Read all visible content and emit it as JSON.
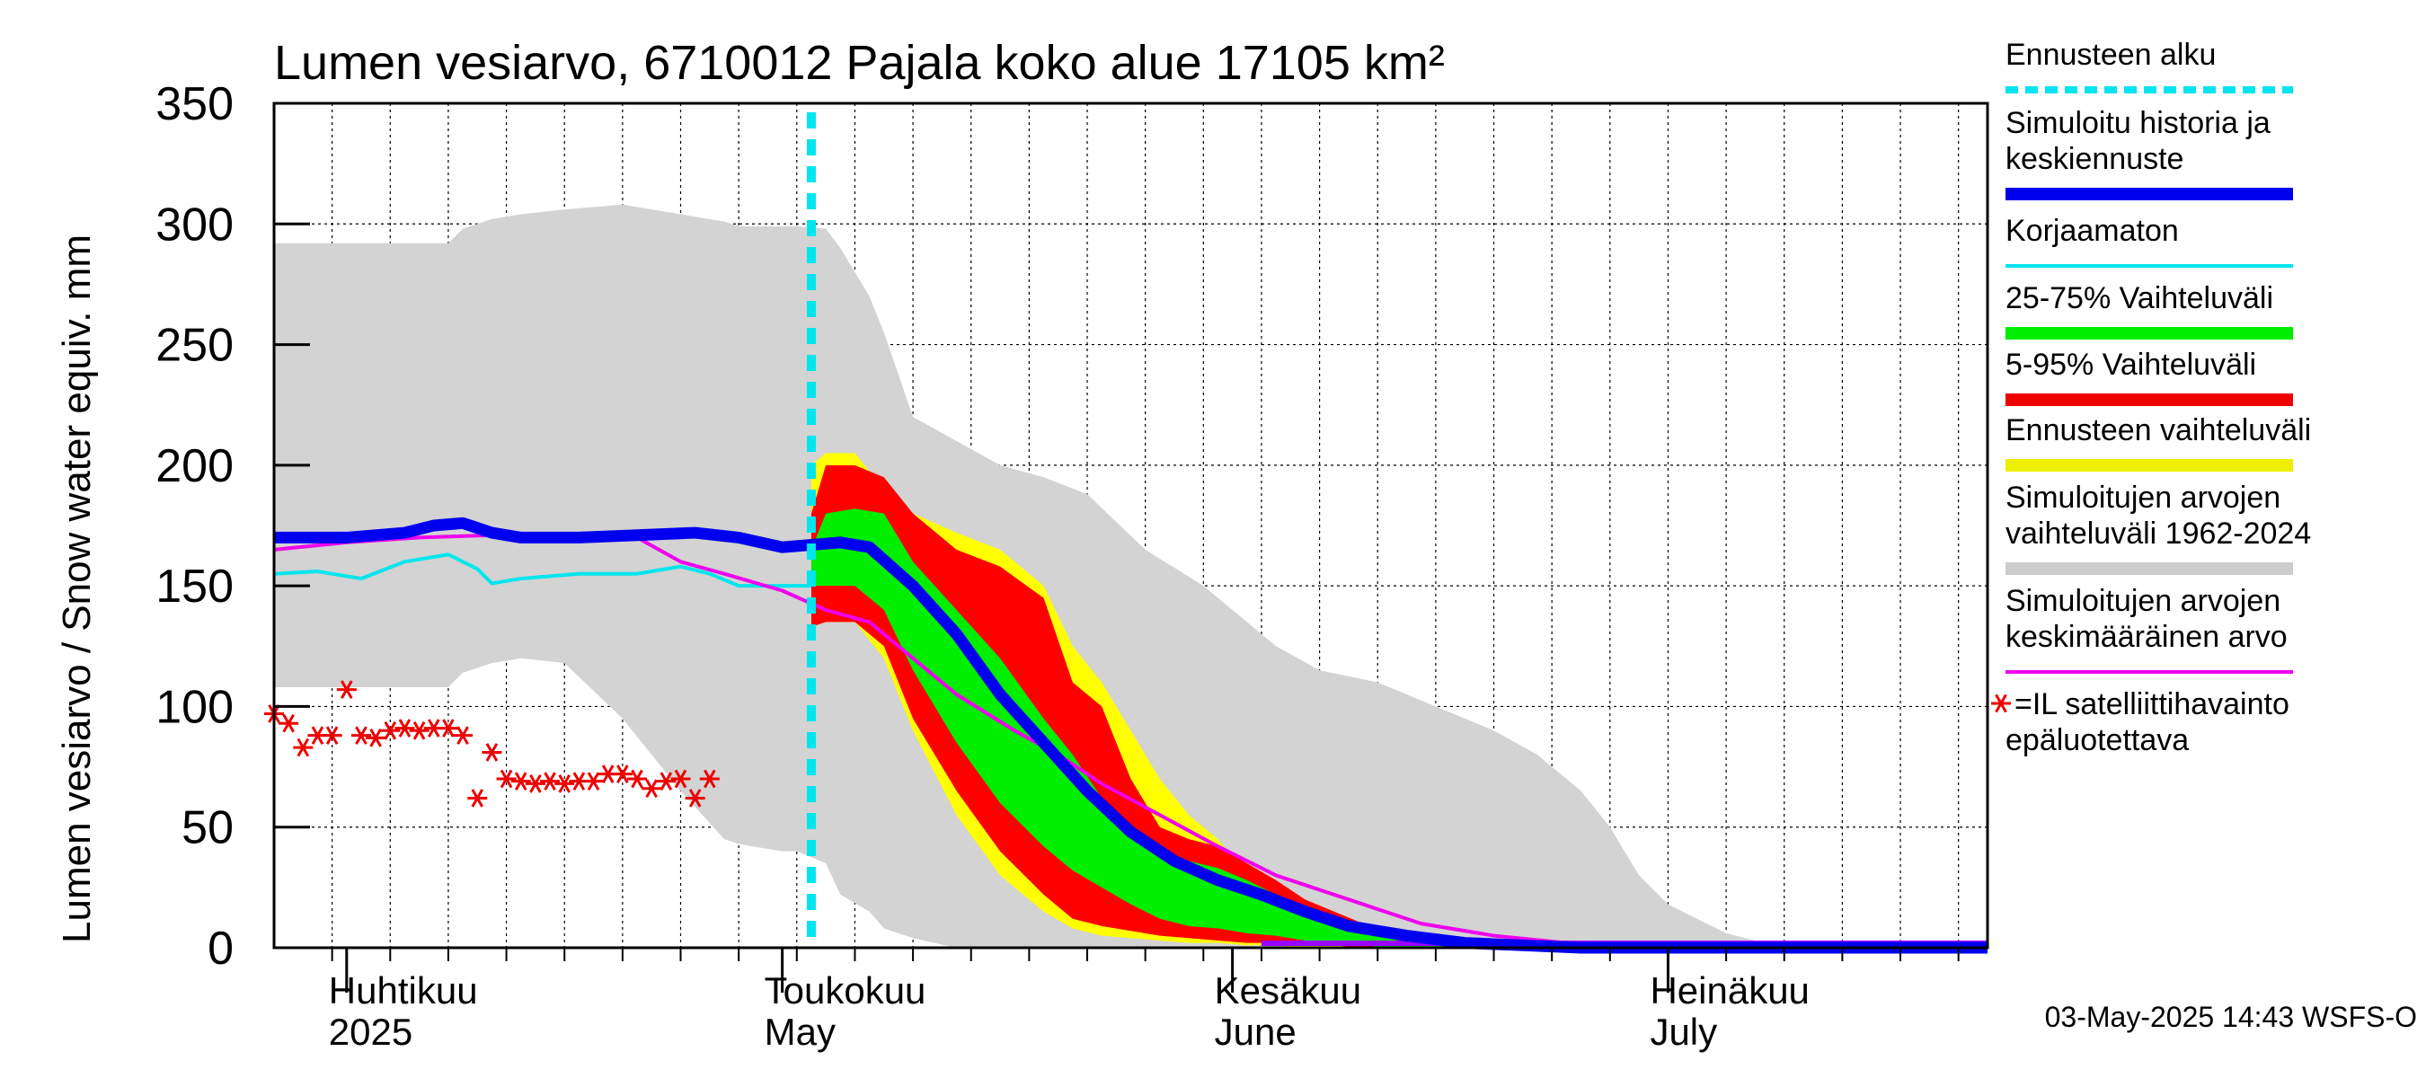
{
  "chart_data": {
    "type": "area",
    "title": "Lumen vesiarvo, 6710012 Pajala koko alue 17105 km²",
    "ylabel": "Lumen vesiarvo / Snow water equiv.    mm",
    "ylim": [
      0,
      350
    ],
    "yticks": [
      0,
      50,
      100,
      150,
      200,
      250,
      300,
      350
    ],
    "x_unit": "day of year 2025",
    "xlim": [
      86,
      204
    ],
    "forecast_start_day": 123,
    "months": [
      {
        "name_fi": "Huhtikuu",
        "name_en": "2025",
        "day": 91
      },
      {
        "name_fi": "Toukokuu",
        "name_en": "May",
        "day": 121
      },
      {
        "name_fi": "Kesäkuu",
        "name_en": "June",
        "day": 152
      },
      {
        "name_fi": "Heinäkuu",
        "name_en": "July",
        "day": 182
      }
    ],
    "series": {
      "historical_range_1962_2024": {
        "x": [
          86,
          98,
          99,
          101,
          103,
          106,
          110,
          114,
          117,
          118,
          121,
          122,
          124,
          125,
          127,
          128,
          130,
          133,
          136,
          139,
          142,
          146,
          150,
          152,
          155,
          158,
          162,
          166,
          170,
          173,
          176,
          178,
          180,
          182,
          184,
          186,
          188,
          190,
          192,
          194
        ],
        "upper": [
          292,
          292,
          298,
          302,
          304,
          306,
          308,
          304,
          301,
          299,
          299,
          299,
          298,
          290,
          270,
          255,
          220,
          210,
          200,
          195,
          188,
          165,
          150,
          140,
          125,
          115,
          110,
          100,
          90,
          80,
          65,
          50,
          30,
          18,
          12,
          6,
          3,
          1,
          0,
          0
        ],
        "lower": [
          108,
          108,
          114,
          118,
          120,
          118,
          95,
          65,
          45,
          43,
          40,
          40,
          35,
          22,
          15,
          8,
          4,
          0,
          0,
          0,
          0,
          0,
          0,
          0,
          0,
          0,
          0,
          0,
          0,
          0,
          0,
          0,
          0,
          0,
          0,
          0,
          0,
          0,
          0,
          0
        ]
      },
      "forecast_range": {
        "x": [
          123,
          124,
          126,
          128,
          130,
          133,
          136,
          139,
          141,
          143,
          145,
          147,
          149,
          151,
          153,
          155,
          157,
          159,
          161,
          163,
          165,
          168,
          171,
          175,
          180
        ],
        "upper": [
          200,
          205,
          205,
          190,
          180,
          172,
          165,
          150,
          125,
          110,
          90,
          70,
          55,
          45,
          30,
          18,
          12,
          8,
          5,
          3,
          2,
          1,
          0,
          0,
          0
        ],
        "lower": [
          133,
          135,
          135,
          120,
          90,
          55,
          30,
          15,
          8,
          5,
          4,
          3,
          2,
          2,
          1,
          1,
          0,
          0,
          0,
          0,
          0,
          0,
          0,
          0,
          0
        ]
      },
      "range_5_95": {
        "x": [
          123,
          124,
          126,
          128,
          130,
          133,
          136,
          139,
          141,
          143,
          145,
          147,
          149,
          151,
          153,
          155,
          157,
          159,
          161,
          163,
          165,
          168,
          171,
          175,
          180
        ],
        "upper": [
          180,
          200,
          200,
          195,
          180,
          165,
          158,
          145,
          110,
          100,
          70,
          50,
          45,
          42,
          35,
          28,
          20,
          15,
          10,
          6,
          4,
          2,
          1,
          0,
          0
        ],
        "lower": [
          133,
          135,
          135,
          125,
          95,
          65,
          40,
          22,
          12,
          9,
          7,
          5,
          4,
          3,
          2,
          2,
          1,
          1,
          0,
          0,
          0,
          0,
          0,
          0,
          0
        ]
      },
      "range_25_75": {
        "x": [
          123,
          124,
          126,
          128,
          130,
          133,
          136,
          139,
          141,
          143,
          145,
          147,
          149,
          151,
          153,
          155,
          157,
          159,
          161,
          163,
          165,
          168,
          171,
          175,
          180
        ],
        "upper": [
          165,
          180,
          182,
          180,
          160,
          140,
          120,
          95,
          80,
          62,
          48,
          40,
          36,
          33,
          28,
          22,
          15,
          10,
          6,
          4,
          2,
          1,
          0,
          0,
          0
        ],
        "lower": [
          150,
          150,
          150,
          140,
          115,
          85,
          60,
          42,
          32,
          25,
          18,
          12,
          9,
          8,
          6,
          5,
          3,
          2,
          1,
          0,
          0,
          0,
          0,
          0,
          0
        ]
      },
      "simulated_history_and_median": {
        "x": [
          86,
          91,
          95,
          97,
          99,
          101,
          103,
          107,
          111,
          115,
          118,
          121,
          123,
          125,
          127,
          130,
          133,
          136,
          139,
          142,
          145,
          148,
          151,
          154,
          157,
          160,
          164,
          168,
          172,
          176,
          180,
          204
        ],
        "values": [
          170,
          170,
          172,
          175,
          176,
          172,
          170,
          170,
          171,
          172,
          170,
          166,
          167,
          168,
          166,
          150,
          130,
          105,
          85,
          65,
          48,
          36,
          28,
          22,
          15,
          9,
          5,
          2,
          1,
          0,
          0,
          0
        ]
      },
      "uncorrected": {
        "x": [
          86,
          89,
          92,
          95,
          98,
          100,
          101,
          103,
          107,
          111,
          114,
          116,
          118,
          121,
          123
        ],
        "values": [
          155,
          156,
          153,
          160,
          163,
          157,
          151,
          153,
          155,
          155,
          158,
          155,
          150,
          150,
          150
        ]
      },
      "historical_mean": {
        "x": [
          86,
          91,
          96,
          101,
          106,
          111,
          114,
          117,
          121,
          124,
          127,
          130,
          133,
          137,
          140,
          143,
          147,
          151,
          155,
          160,
          165,
          170,
          175,
          180,
          204
        ],
        "values": [
          165,
          168,
          170,
          171,
          170,
          170,
          160,
          155,
          148,
          140,
          135,
          120,
          105,
          90,
          80,
          68,
          55,
          42,
          30,
          20,
          10,
          5,
          2,
          1,
          0
        ]
      },
      "satellite_observations": {
        "x": [
          86,
          87,
          88,
          89,
          90,
          91,
          92,
          93,
          94,
          95,
          96,
          97,
          98,
          99,
          100,
          101,
          102,
          103,
          104,
          105,
          106,
          107,
          108,
          109,
          110,
          111,
          112,
          113,
          114,
          115,
          116
        ],
        "values": [
          97,
          93,
          83,
          88,
          88,
          107,
          88,
          87,
          90,
          91,
          90,
          91,
          91,
          88,
          62,
          81,
          70,
          69,
          68,
          69,
          68,
          69,
          69,
          72,
          72,
          70,
          66,
          69,
          70,
          62,
          70
        ]
      }
    },
    "legend": [
      {
        "label": "Ennusteen alku",
        "color": "#00e5ee",
        "style": "dashed"
      },
      {
        "label": "Simuloitu historia ja",
        "label2": "keskiennuste",
        "color": "#0000ee",
        "style": "thick"
      },
      {
        "label": "Korjaamaton",
        "color": "#00e5ee",
        "style": "thin"
      },
      {
        "label": "25-75% Vaihteluväli",
        "color": "#00ee00",
        "style": "thick"
      },
      {
        "label": "5-95% Vaihteluväli",
        "color": "#ee0000",
        "style": "thick"
      },
      {
        "label": "Ennusteen vaihteluväli",
        "color": "#eeee00",
        "style": "thick"
      },
      {
        "label": "Simuloitujen arvojen",
        "label2": "vaihteluväli 1962-2024",
        "color": "#cccccc",
        "style": "thick"
      },
      {
        "label": "Simuloitujen arvojen",
        "label2": "keskimääräinen arvo",
        "color": "#ee00ee",
        "style": "thin"
      },
      {
        "label": "=IL satelliittihavainto",
        "label2": "epäluotettava",
        "color": "#ee0000",
        "style": "star"
      }
    ],
    "footer": "03-May-2025 14:43 WSFS-O"
  }
}
